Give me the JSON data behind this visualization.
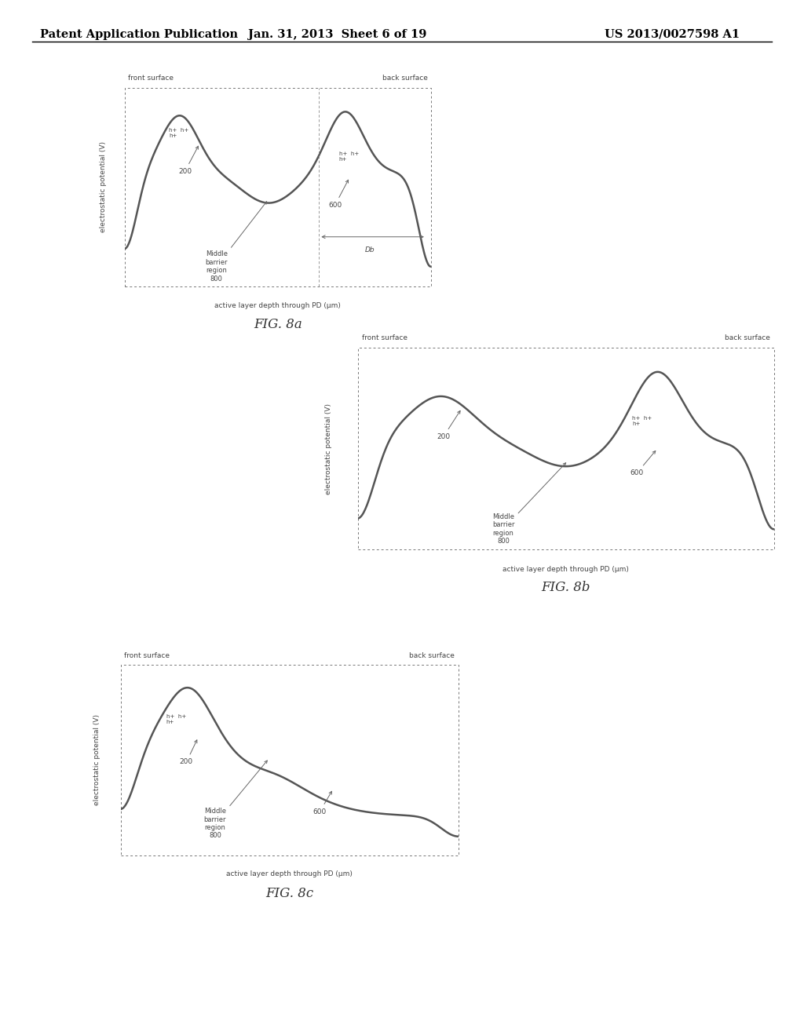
{
  "header_left": "Patent Application Publication",
  "header_center": "Jan. 31, 2013  Sheet 6 of 19",
  "header_right": "US 2013/0027598 A1",
  "bg_color": "#ffffff",
  "curve_color": "#555555",
  "text_color": "#444444",
  "fig8a": {
    "label": "FIG. 8a",
    "front_surface": "front surface",
    "back_surface": "back surface",
    "ylabel": "electrostatic potential (V)",
    "xlabel": "active layer depth through PD (μm)"
  },
  "fig8b": {
    "label": "FIG. 8b",
    "front_surface": "front surface",
    "back_surface": "back surface",
    "ylabel": "electrostatic potential (V)",
    "xlabel": "active layer depth through PD (μm)"
  },
  "fig8c": {
    "label": "FIG. 8c",
    "front_surface": "front surface",
    "back_surface": "back surface",
    "ylabel": "electrostatic potential (V)",
    "xlabel": "active layer depth through PD (μm)"
  }
}
